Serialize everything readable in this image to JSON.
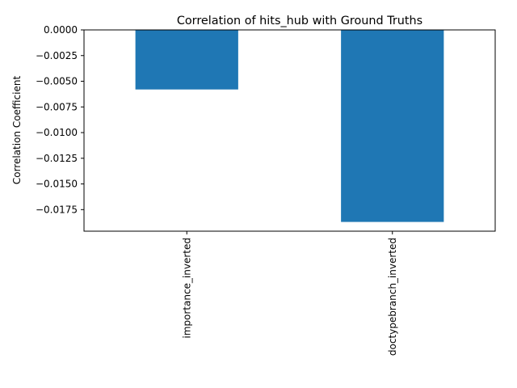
{
  "chart_data": {
    "type": "bar",
    "title": "Correlation of hits_hub with Ground Truths",
    "xlabel": "",
    "ylabel": "Correlation Coefficient",
    "categories": [
      "importance_inverted",
      "doctypebranch_inverted"
    ],
    "values": [
      -0.0058,
      -0.0187
    ],
    "ylim": [
      -0.0196,
      0.0
    ],
    "yticks": [
      0.0,
      -0.0025,
      -0.005,
      -0.0075,
      -0.01,
      -0.0125,
      -0.015,
      -0.0175
    ],
    "ytick_labels": [
      "0.0000",
      "−0.0025",
      "−0.0050",
      "−0.0075",
      "−0.0100",
      "−0.0125",
      "−0.0150",
      "−0.0175"
    ],
    "bar_color": "#1f77b4",
    "grid": false,
    "legend": "none"
  }
}
